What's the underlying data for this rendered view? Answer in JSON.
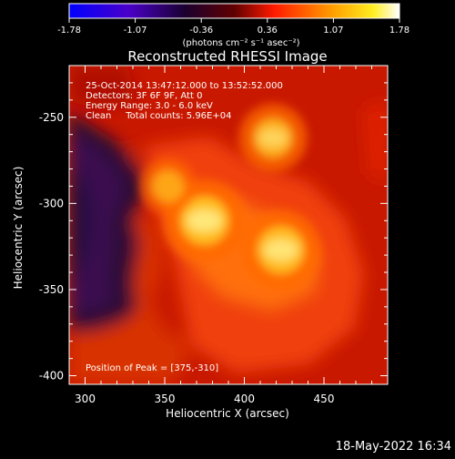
{
  "colorbar": {
    "tick_labels": [
      "-1.78",
      "-1.07",
      "-0.36",
      "0.36",
      "1.07",
      "1.78"
    ],
    "range": [
      -1.78,
      1.78
    ],
    "units": "(photons cm⁻² s⁻¹ asec⁻²)",
    "colors": [
      "#0000ff",
      "#000000",
      "#ff0000",
      "#ffff00",
      "#ffffff"
    ]
  },
  "chart_data": {
    "type": "heatmap",
    "title": "Reconstructed RHESSI Image",
    "xlabel": "Heliocentric X (arcsec)",
    "ylabel": "Heliocentric Y (arcsec)",
    "xlim": [
      290,
      490
    ],
    "ylim": [
      -405,
      -220
    ],
    "xticks": [
      300,
      350,
      400,
      450
    ],
    "yticks": [
      -250,
      -300,
      -350,
      -400
    ],
    "annotations": [
      "25-Oct-2014 13:47:12.000 to 13:52:52.000",
      "Detectors: 3F 6F 9F, Att 0",
      "Energy Range: 3.0 - 6.0 keV",
      "Clean     Total counts: 5.96E+04"
    ],
    "peak_label": "Position of Peak = [375,-310]",
    "peak": [
      375,
      -310
    ],
    "sources": [
      {
        "x": 375,
        "y": -310,
        "relative_intensity": 1.0
      },
      {
        "x": 423,
        "y": -327,
        "relative_intensity": 0.95
      },
      {
        "x": 418,
        "y": -262,
        "relative_intensity": 0.7
      },
      {
        "x": 352,
        "y": -290,
        "relative_intensity": 0.45
      }
    ]
  },
  "footer": {
    "timestamp": "18-May-2022 16:34"
  }
}
